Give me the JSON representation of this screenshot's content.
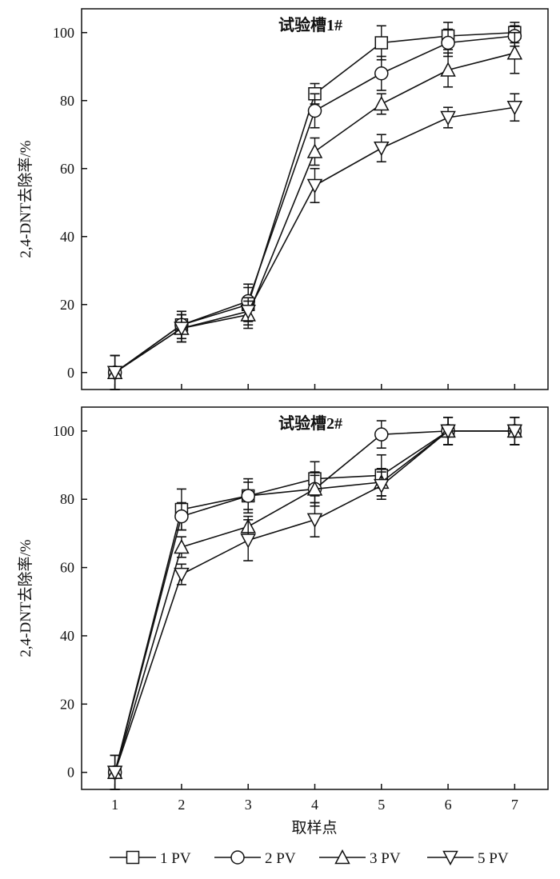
{
  "chart_data": [
    {
      "type": "line",
      "title": "试验槽1#",
      "xlabel": "",
      "ylabel": "2,4-DNT去除率/%",
      "xlim": [
        0.5,
        7.5
      ],
      "ylim": [
        -5,
        107
      ],
      "x_ticks": [
        "1",
        "2",
        "3",
        "4",
        "5",
        "6",
        "7"
      ],
      "y_ticks": [
        "0",
        "20",
        "40",
        "60",
        "80",
        "100"
      ],
      "grid": false,
      "x": [
        1,
        2,
        3,
        4,
        5,
        6,
        7
      ],
      "series": [
        {
          "name": "1 PV",
          "marker": "square",
          "values": [
            0,
            14,
            20,
            82,
            97,
            99,
            100
          ],
          "errors": [
            5,
            4,
            5,
            3,
            5,
            4,
            3
          ]
        },
        {
          "name": "2 PV",
          "marker": "circle",
          "values": [
            0,
            14,
            21,
            77,
            88,
            97,
            99
          ],
          "errors": [
            5,
            4,
            5,
            5,
            5,
            4,
            3
          ]
        },
        {
          "name": "3 PV",
          "marker": "triangle-up",
          "values": [
            0,
            13,
            17,
            65,
            79,
            89,
            94
          ],
          "errors": [
            5,
            4,
            4,
            4,
            3,
            5,
            6
          ]
        },
        {
          "name": "5 PV",
          "marker": "triangle-down",
          "values": [
            0,
            13,
            18,
            55,
            66,
            75,
            78
          ],
          "errors": [
            5,
            4,
            4,
            5,
            4,
            3,
            4
          ]
        }
      ]
    },
    {
      "type": "line",
      "title": "试验槽2#",
      "xlabel": "取样点",
      "ylabel": "2,4-DNT去除率/%",
      "xlim": [
        0.5,
        7.5
      ],
      "ylim": [
        -5,
        107
      ],
      "x_ticks": [
        "1",
        "2",
        "3",
        "4",
        "5",
        "6",
        "7"
      ],
      "y_ticks": [
        "0",
        "20",
        "40",
        "60",
        "80",
        "100"
      ],
      "grid": false,
      "x": [
        1,
        2,
        3,
        4,
        5,
        6,
        7
      ],
      "series": [
        {
          "name": "1 PV",
          "marker": "square",
          "values": [
            0,
            77,
            81,
            86,
            87,
            100,
            100
          ],
          "errors": [
            5,
            6,
            5,
            5,
            6,
            4,
            4
          ]
        },
        {
          "name": "2 PV",
          "marker": "circle",
          "values": [
            0,
            75,
            81,
            83,
            99,
            100,
            100
          ],
          "errors": [
            5,
            4,
            4,
            4,
            4,
            4,
            4
          ]
        },
        {
          "name": "3 PV",
          "marker": "triangle-up",
          "values": [
            0,
            66,
            72,
            83,
            85,
            100,
            100
          ],
          "errors": [
            5,
            3,
            3,
            5,
            4,
            4,
            4
          ]
        },
        {
          "name": "5 PV",
          "marker": "triangle-down",
          "values": [
            0,
            58,
            68,
            74,
            84,
            100,
            100
          ],
          "errors": [
            5,
            3,
            6,
            5,
            4,
            4,
            4
          ]
        }
      ]
    }
  ],
  "legend": {
    "placement": "bottom",
    "items": [
      {
        "label": "1 PV",
        "marker": "square"
      },
      {
        "label": "2 PV",
        "marker": "circle"
      },
      {
        "label": "3 PV",
        "marker": "triangle-up"
      },
      {
        "label": "5 PV",
        "marker": "triangle-down"
      }
    ]
  },
  "colors": {
    "ink": "#111111",
    "background": "#ffffff"
  }
}
